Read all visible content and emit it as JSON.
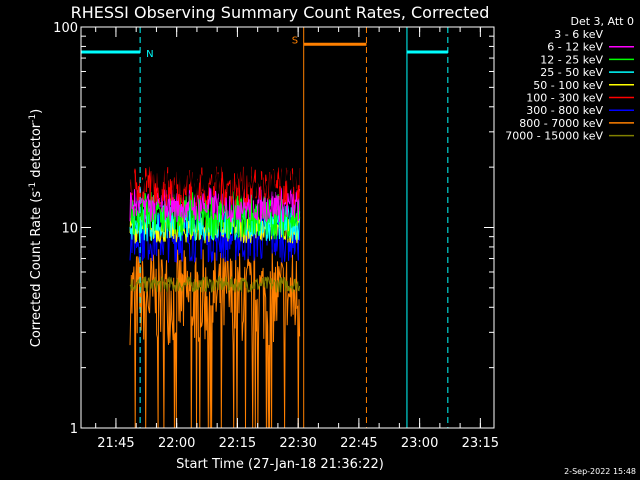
{
  "chart_data": {
    "type": "line",
    "title": "RHESSI Observing Summary Count Rates, Corrected",
    "xlabel": "Start Time (27-Jan-18 21:36:22)",
    "ylabel": "Corrected Count Rate (s⁻¹ detector⁻¹)",
    "ylabel_parts": {
      "main": "Corrected Count Rate (s",
      "exp1": "-1",
      "mid": " detector",
      "exp2": "-1",
      "end": ")"
    },
    "x_unit": "minutes since 21:36:22",
    "xlim": [
      0,
      102
    ],
    "ylim": [
      1,
      100
    ],
    "yscale": "log",
    "x_ticks": [
      {
        "value": 8.63,
        "label": "21:45"
      },
      {
        "value": 23.63,
        "label": "22:00"
      },
      {
        "value": 38.63,
        "label": "22:15"
      },
      {
        "value": 53.63,
        "label": "22:30"
      },
      {
        "value": 68.63,
        "label": "22:45"
      },
      {
        "value": 83.63,
        "label": "23:00"
      },
      {
        "value": 98.63,
        "label": "23:15"
      }
    ],
    "y_ticks": [
      {
        "value": 1,
        "label": "1"
      },
      {
        "value": 10,
        "label": "10"
      },
      {
        "value": 100,
        "label": "100"
      }
    ],
    "legend": {
      "placement": "right",
      "header": "Det 3, Att 0",
      "entries": [
        {
          "label": "3 - 6 keV",
          "color": "#000000"
        },
        {
          "label": "6 - 12 keV",
          "color": "#ff00ff"
        },
        {
          "label": "12 - 25 keV",
          "color": "#00ff00"
        },
        {
          "label": "25 - 50 keV",
          "color": "#00ffff"
        },
        {
          "label": "50 - 100 keV",
          "color": "#ffff00"
        },
        {
          "label": "100 - 300 keV",
          "color": "#ff0000"
        },
        {
          "label": "300 - 800 keV",
          "color": "#0000ff"
        },
        {
          "label": "800 - 7000 keV",
          "color": "#ff8000"
        },
        {
          "label": "7000 - 15000 keV",
          "color": "#808000"
        }
      ]
    },
    "data_window": [
      12.1,
      54.0
    ],
    "series": [
      {
        "color": "#000000",
        "level": 18.0,
        "spread": 0.13
      },
      {
        "color": "#ff0000",
        "level": 16.0,
        "spread": 0.1
      },
      {
        "color": "#ff00ff",
        "level": 13.0,
        "spread": 0.09
      },
      {
        "color": "#00ff00",
        "level": 11.5,
        "spread": 0.12
      },
      {
        "color": "#00ffff",
        "level": 10.5,
        "spread": 0.09
      },
      {
        "color": "#ffff00",
        "level": 9.8,
        "spread": 0.07
      },
      {
        "color": "#0000ff",
        "level": 9.0,
        "spread": 0.13
      },
      {
        "color": "#808000",
        "level": 5.2,
        "spread": 0.04
      },
      {
        "color": "#ff8000",
        "level": 4.5,
        "spread": 0.24
      }
    ],
    "status_markers": [
      {
        "type": "night",
        "label": "N",
        "color": "#00ffff",
        "level": 75,
        "segments": [
          [
            0.0,
            14.6
          ],
          [
            80.5,
            90.6
          ]
        ],
        "edges": [
          0.0,
          80.5
        ]
      },
      {
        "type": "saa",
        "label": "S",
        "color": "#ff8000",
        "level": 82,
        "segments": [
          [
            55.0,
            70.5
          ]
        ],
        "edges": [
          55.0
        ]
      }
    ],
    "status_dashed": [
      {
        "color": "#00ffff",
        "value": 14.6
      },
      {
        "color": "#ff8000",
        "value": 70.5
      },
      {
        "color": "#00ffff",
        "value": 90.6
      }
    ]
  },
  "footer": {
    "date_stamp": "2-Sep-2022 15:48"
  }
}
